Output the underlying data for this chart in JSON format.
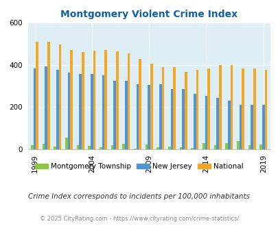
{
  "title": "Montgomery Violent Crime Index",
  "years": [
    1999,
    2000,
    2001,
    2002,
    2003,
    2004,
    2005,
    2006,
    2007,
    2008,
    2009,
    2010,
    2011,
    2012,
    2013,
    2014,
    2015,
    2016,
    2017,
    2018,
    2019
  ],
  "montgomery": [
    18,
    25,
    12,
    55,
    18,
    15,
    10,
    18,
    25,
    2,
    22,
    8,
    13,
    8,
    5,
    28,
    18,
    28,
    38,
    18,
    22
  ],
  "new_jersey": [
    382,
    393,
    375,
    362,
    355,
    355,
    350,
    325,
    325,
    308,
    305,
    308,
    285,
    285,
    262,
    252,
    243,
    230,
    210,
    210,
    210
  ],
  "national": [
    508,
    508,
    497,
    470,
    460,
    468,
    470,
    465,
    455,
    428,
    405,
    390,
    390,
    365,
    375,
    383,
    398,
    398,
    383,
    383,
    375
  ],
  "colors": {
    "montgomery": "#8dc63f",
    "new_jersey": "#4f94d4",
    "national": "#f5a623"
  },
  "ylim": [
    0,
    600
  ],
  "yticks": [
    0,
    200,
    400,
    600
  ],
  "bg_color": "#deeef5",
  "title_color": "#1060b0",
  "legend_labels": [
    "Montgomery Township",
    "New Jersey",
    "National"
  ],
  "footnote1": "Crime Index corresponds to incidents per 100,000 inhabitants",
  "footnote2": "© 2025 CityRating.com - https://www.cityrating.com/crime-statistics/",
  "footnote_color1": "#333333",
  "footnote_color2": "#888888",
  "bar_width": 0.22
}
